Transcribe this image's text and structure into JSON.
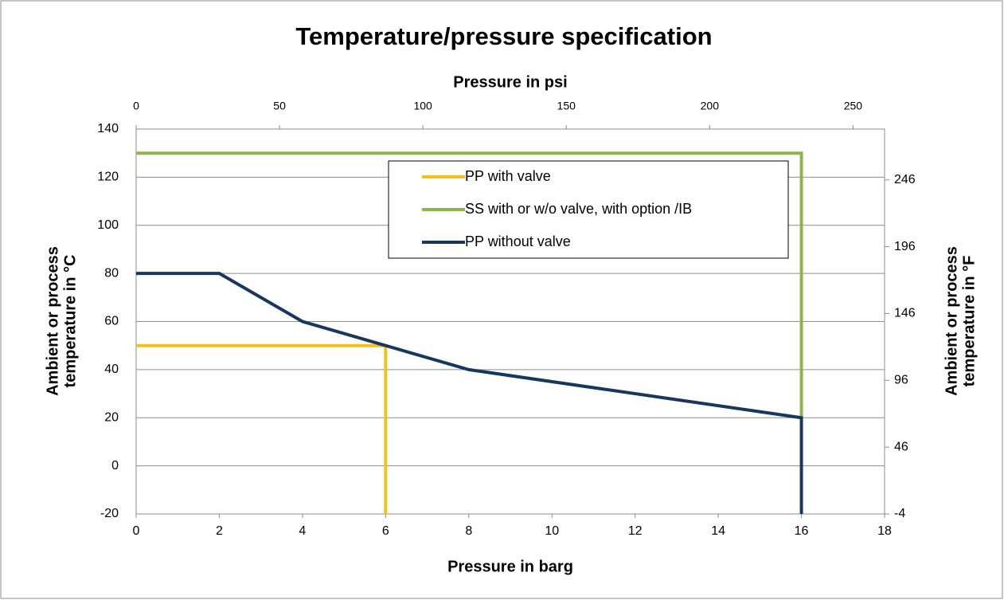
{
  "chart_data": {
    "type": "line",
    "title": "Temperature/pressure specification",
    "x_label": "Pressure in barg",
    "x2_label": "Pressure in psi",
    "y_label": [
      "Ambient or  process",
      "temperature in °C"
    ],
    "y2_label": [
      "Ambient or  process",
      "temperature in °F"
    ],
    "xlim": [
      0,
      18
    ],
    "xticks": [
      0,
      2,
      4,
      6,
      8,
      10,
      12,
      14,
      16,
      18
    ],
    "x2lim": [
      0,
      261
    ],
    "x2ticks": [
      0,
      50,
      100,
      150,
      200,
      250
    ],
    "ylim": [
      -20,
      140
    ],
    "yticks": [
      -20,
      0,
      20,
      40,
      60,
      80,
      100,
      120,
      140
    ],
    "y2lim": [
      -4,
      284
    ],
    "y2ticks": [
      -4,
      46,
      96,
      146,
      196,
      246
    ],
    "grid": true,
    "legend": "top-center",
    "series": [
      {
        "name": "PP with valve",
        "color": "#f5c118",
        "x": [
          0,
          6,
          6
        ],
        "values": [
          50,
          50,
          -20
        ]
      },
      {
        "name": "SS with or w/o valve, with option /IB",
        "color": "#8db54b",
        "x": [
          0,
          16,
          16
        ],
        "values": [
          130,
          130,
          20
        ]
      },
      {
        "name": "PP without valve",
        "color": "#17375e",
        "x": [
          0,
          2,
          4,
          6,
          8,
          16,
          16
        ],
        "values": [
          80,
          80,
          60,
          50,
          40,
          20,
          -20
        ]
      }
    ]
  }
}
